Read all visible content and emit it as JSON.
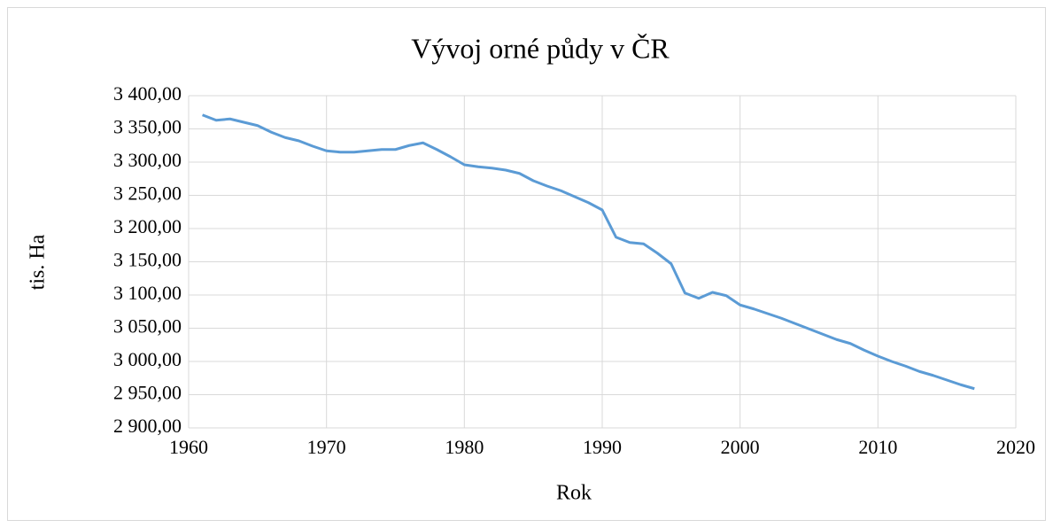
{
  "chart_data": {
    "type": "line",
    "title": "Vývoj orné půdy v ČR",
    "xlabel": "Rok",
    "ylabel": "tis. Ha",
    "x": [
      1961,
      1962,
      1963,
      1964,
      1965,
      1966,
      1967,
      1968,
      1969,
      1970,
      1971,
      1972,
      1973,
      1974,
      1975,
      1976,
      1977,
      1978,
      1979,
      1980,
      1981,
      1982,
      1983,
      1984,
      1985,
      1986,
      1987,
      1988,
      1989,
      1990,
      1991,
      1992,
      1993,
      1994,
      1995,
      1996,
      1997,
      1998,
      1999,
      2000,
      2001,
      2002,
      2003,
      2004,
      2005,
      2006,
      2007,
      2008,
      2009,
      2010,
      2011,
      2012,
      2013,
      2014,
      2015,
      2016,
      2017
    ],
    "series": [
      {
        "name": "tis. Ha",
        "color": "#5b9bd5",
        "values": [
          3371,
          3363,
          3365,
          3360,
          3355,
          3345,
          3337,
          3332,
          3324,
          3317,
          3315,
          3315,
          3317,
          3319,
          3319,
          3325,
          3329,
          3319,
          3308,
          3296,
          3293,
          3291,
          3288,
          3283,
          3272,
          3264,
          3257,
          3248,
          3239,
          3228,
          3187,
          3179,
          3177,
          3163,
          3147,
          3103,
          3095,
          3104,
          3099,
          3085,
          3079,
          3072,
          3065,
          3057,
          3049,
          3041,
          3033,
          3027,
          3017,
          3008,
          3000,
          2993,
          2985,
          2979,
          2972,
          2965,
          2959
        ]
      }
    ],
    "xlim": [
      1960,
      2020
    ],
    "xticks": [
      1960,
      1970,
      1980,
      1990,
      2000,
      2010,
      2020
    ],
    "ylim": [
      2900,
      3400
    ],
    "yticks": [
      {
        "value": 2900,
        "label": "2 900,00"
      },
      {
        "value": 2950,
        "label": "2 950,00"
      },
      {
        "value": 3000,
        "label": "3 000,00"
      },
      {
        "value": 3050,
        "label": "3 050,00"
      },
      {
        "value": 3100,
        "label": "3 100,00"
      },
      {
        "value": 3150,
        "label": "3 150,00"
      },
      {
        "value": 3200,
        "label": "3 200,00"
      },
      {
        "value": 3250,
        "label": "3 250,00"
      },
      {
        "value": 3300,
        "label": "3 300,00"
      },
      {
        "value": 3350,
        "label": "3 350,00"
      },
      {
        "value": 3400,
        "label": "3 400,00"
      }
    ],
    "grid": true
  }
}
